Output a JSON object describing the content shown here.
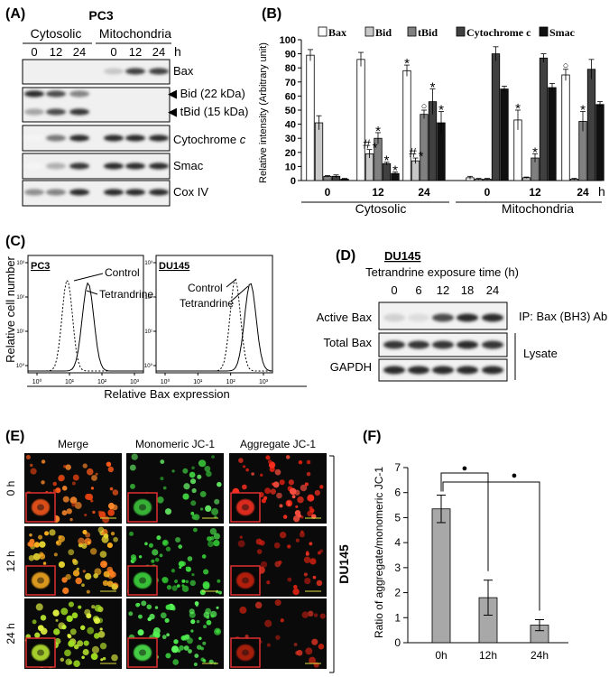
{
  "panelA": {
    "letter": "(A)",
    "cell_line": "PC3",
    "groups": [
      "Cytosolic",
      "Mitochondria"
    ],
    "times": [
      "0",
      "12",
      "24",
      "0",
      "12",
      "24"
    ],
    "unit": "h",
    "blots": [
      "Bax",
      "Bid (22 kDa)",
      "tBid (15 kDa)",
      "Cytochrome c",
      "Smac",
      "Cox IV"
    ]
  },
  "panelB": {
    "letter": "(B)",
    "chart_data": {
      "type": "bar",
      "ylabel": "Relative intensity (Arbitrary unit)",
      "ylim": [
        0,
        100
      ],
      "yticks": [
        0,
        10,
        20,
        30,
        40,
        50,
        60,
        70,
        80,
        90,
        100
      ],
      "categories": [
        "0",
        "12",
        "24",
        "0",
        "12",
        "24"
      ],
      "unit": "h",
      "groups": [
        "Cytosolic",
        "Mitochondria"
      ],
      "series": [
        {
          "name": "Bax",
          "color": "#ffffff",
          "values": [
            89,
            86,
            78,
            2,
            43,
            75
          ],
          "errors": [
            4,
            5,
            4,
            1,
            7,
            4
          ]
        },
        {
          "name": "Bid",
          "color": "#c8c8c8",
          "values": [
            41,
            19,
            14,
            1,
            2,
            1
          ],
          "errors": [
            5,
            3,
            2,
            0.5,
            0.5,
            0.5
          ]
        },
        {
          "name": "tBid",
          "color": "#808080",
          "values": [
            3,
            30,
            47,
            1,
            16,
            42
          ],
          "errors": [
            0.5,
            4,
            3,
            0.5,
            3,
            7
          ]
        },
        {
          "name": "Cytochrome c",
          "color": "#404040",
          "values": [
            3,
            12,
            56,
            90,
            87,
            79
          ],
          "errors": [
            1,
            1,
            9,
            5,
            3,
            7
          ]
        },
        {
          "name": "Smac",
          "color": "#101010",
          "values": [
            1,
            5,
            41,
            65,
            66,
            54
          ],
          "errors": [
            0.5,
            1,
            8,
            2,
            3,
            2
          ]
        }
      ],
      "markers": [
        {
          "cat": 1,
          "series": 1,
          "symbol": "#"
        },
        {
          "cat": 1,
          "series": 1,
          "symbol": "*"
        },
        {
          "cat": 1,
          "series": 2,
          "symbol": "*"
        },
        {
          "cat": 1,
          "series": 3,
          "symbol": "*"
        },
        {
          "cat": 1,
          "series": 4,
          "symbol": "*"
        },
        {
          "cat": 2,
          "series": 0,
          "symbol": "*"
        },
        {
          "cat": 2,
          "series": 1,
          "symbol": "#"
        },
        {
          "cat": 2,
          "series": 1,
          "symbol": "*"
        },
        {
          "cat": 2,
          "series": 2,
          "symbol": "○"
        },
        {
          "cat": 2,
          "series": 3,
          "symbol": "*"
        },
        {
          "cat": 2,
          "series": 4,
          "symbol": "*"
        },
        {
          "cat": 4,
          "series": 0,
          "symbol": "*"
        },
        {
          "cat": 4,
          "series": 2,
          "symbol": "*"
        },
        {
          "cat": 5,
          "series": 0,
          "symbol": "○"
        },
        {
          "cat": 5,
          "series": 2,
          "symbol": "*"
        }
      ]
    }
  },
  "panelC": {
    "letter": "(C)",
    "ylabel": "Relative cell number",
    "xlabel": "Relative Bax expression",
    "plots": [
      {
        "cell_line": "PC3",
        "control_label": "Control",
        "treat_label": "Tetrandrine"
      },
      {
        "cell_line": "DU145",
        "control_label": "Control",
        "treat_label": "Tetrandrine"
      }
    ],
    "xticks": [
      "10⁰",
      "10¹",
      "10²",
      "10³"
    ]
  },
  "panelD": {
    "letter": "(D)",
    "cell_line": "DU145",
    "subtitle": "Tetrandrine exposure time (h)",
    "times": [
      "0",
      "6",
      "12",
      "18",
      "24"
    ],
    "rows": [
      "Active Bax",
      "Total Bax",
      "GAPDH"
    ],
    "ip_label": "IP: Bax (BH3) Ab",
    "lysate_label": "Lysate"
  },
  "panelE": {
    "letter": "(E)",
    "columns": [
      "Merge",
      "Monomeric JC-1",
      "Aggregate JC-1"
    ],
    "rows": [
      "0 h",
      "12 h",
      "24 h"
    ],
    "cell_line": "DU145"
  },
  "panelF": {
    "letter": "(F)",
    "chart_data": {
      "type": "bar",
      "ylabel": "Ratio of aggregate/monomeric JC-1",
      "ylim": [
        0,
        7
      ],
      "yticks": [
        0,
        1,
        2,
        3,
        4,
        5,
        6,
        7
      ],
      "categories": [
        "0h",
        "12h",
        "24h"
      ],
      "values": [
        5.35,
        1.8,
        0.7
      ],
      "errors": [
        0.55,
        0.7,
        0.22
      ],
      "color": "#a8a8a8",
      "significance": [
        {
          "from": "0h",
          "to": "12h",
          "symbol": "●"
        },
        {
          "from": "0h",
          "to": "24h",
          "symbol": "●"
        }
      ]
    }
  }
}
